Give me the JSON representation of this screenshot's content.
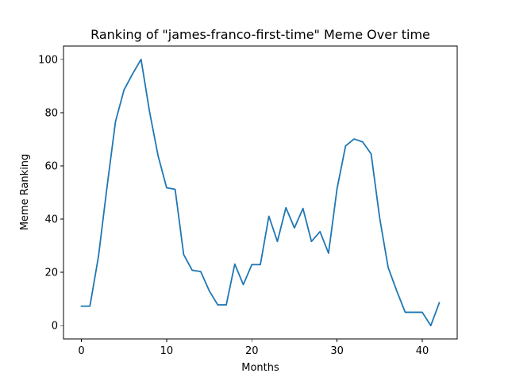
{
  "chart_data": {
    "type": "line",
    "title": "Ranking of \"james-franco-first-time\" Meme Over time",
    "xlabel": "Months",
    "ylabel": "Meme Ranking",
    "xlim": [
      -2.1,
      44.1
    ],
    "ylim": [
      -5,
      105
    ],
    "xticks": [
      0,
      10,
      20,
      30,
      40
    ],
    "yticks": [
      0,
      20,
      40,
      60,
      80,
      100
    ],
    "xtick_labels": [
      "0",
      "10",
      "20",
      "30",
      "40"
    ],
    "ytick_labels": [
      "0",
      "20",
      "40",
      "60",
      "80",
      "100"
    ],
    "grid": false,
    "series": [
      {
        "color": "#1f77b4",
        "x": [
          0,
          1,
          2,
          3,
          4,
          5,
          6,
          7,
          8,
          9,
          10,
          11,
          12,
          13,
          14,
          15,
          16,
          17,
          18,
          19,
          20,
          21,
          22,
          23,
          24,
          25,
          26,
          27,
          28,
          29,
          30,
          31,
          32,
          33,
          34,
          35,
          36,
          37,
          38,
          39,
          40,
          41,
          42
        ],
        "values": [
          7.3,
          7.3,
          25.9,
          51.9,
          76.6,
          88.5,
          94.5,
          100,
          80.3,
          63.8,
          51.8,
          51.2,
          26.7,
          20.8,
          20.3,
          13.1,
          7.8,
          7.8,
          23.1,
          15.4,
          22.9,
          22.9,
          41.1,
          31.6,
          44.3,
          36.7,
          44.0,
          31.6,
          35.3,
          27.2,
          51.4,
          67.5,
          70.1,
          69.0,
          64.5,
          40.5,
          21.8,
          13.1,
          5.0,
          5.0,
          5.0,
          0,
          8.6
        ]
      }
    ]
  }
}
